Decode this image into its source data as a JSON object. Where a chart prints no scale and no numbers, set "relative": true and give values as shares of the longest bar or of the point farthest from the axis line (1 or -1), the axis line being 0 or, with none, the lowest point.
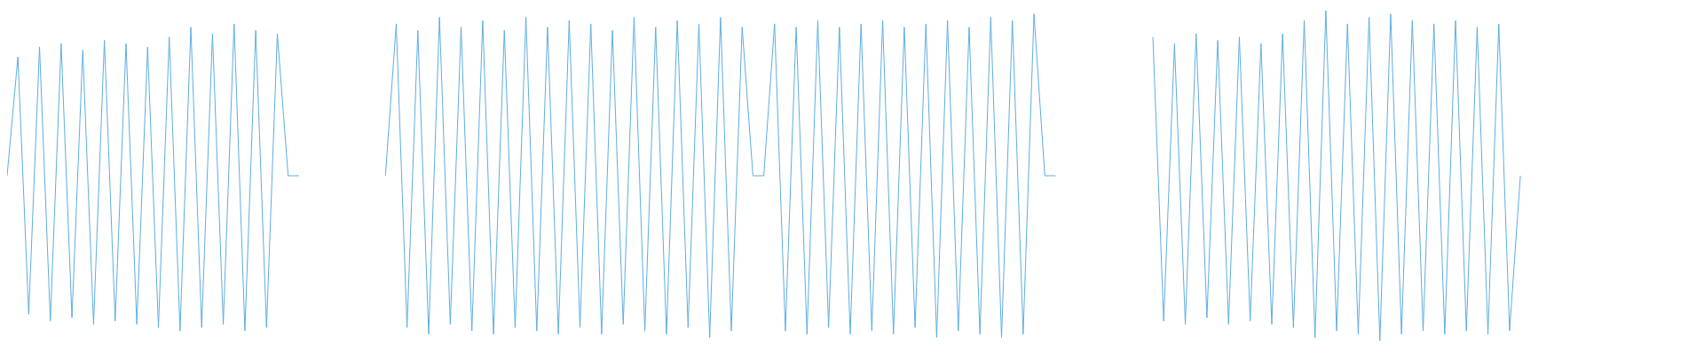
{
  "chart_data": {
    "type": "line",
    "relative": true,
    "grid": false,
    "legend": false,
    "marker": "none",
    "categories": [
      null,
      null,
      null,
      null,
      null,
      null,
      null,
      null,
      null,
      null,
      null,
      null,
      null,
      null,
      null,
      null,
      null,
      null,
      null,
      null,
      null,
      null,
      null,
      null,
      null,
      null,
      null,
      null,
      null,
      null,
      null,
      null,
      null,
      null,
      null,
      null,
      null,
      null,
      null,
      null,
      null,
      null,
      null,
      null,
      null,
      null,
      null,
      null,
      null,
      null,
      null,
      null,
      null,
      null,
      null,
      null,
      null,
      null,
      null,
      null,
      null,
      null,
      null,
      null,
      null,
      null,
      null,
      null,
      null,
      null,
      null,
      null,
      null,
      null,
      null,
      null,
      null,
      null,
      null,
      null,
      null,
      null,
      null,
      null,
      null,
      null,
      null,
      null,
      null,
      null,
      null,
      null,
      null,
      null,
      null,
      null,
      null,
      null,
      null,
      null,
      null,
      null,
      null,
      null,
      null,
      null,
      null,
      null,
      null,
      null,
      null,
      null,
      null,
      null,
      null,
      null,
      null,
      null,
      null,
      null,
      null,
      null,
      null,
      null,
      null,
      null,
      null,
      null,
      null,
      null,
      null,
      null,
      null,
      null,
      null,
      null,
      null,
      null,
      null,
      null,
      null,
      null,
      null,
      null,
      null,
      null,
      null,
      null,
      null,
      null,
      null,
      null,
      null,
      null,
      null,
      null,
      null
    ],
    "series": [
      {
        "color": "#5dade2",
        "values": [
          0.5,
          0.86,
          0.08,
          0.89,
          0.06,
          0.9,
          0.07,
          0.88,
          0.05,
          0.91,
          0.06,
          0.9,
          0.05,
          0.89,
          0.04,
          0.92,
          0.03,
          0.95,
          0.04,
          0.93,
          0.05,
          0.96,
          0.03,
          0.94,
          0.04,
          0.93,
          0.5,
          0.5,
          null,
          null,
          null,
          null,
          null,
          null,
          null,
          null,
          null,
          null,
          null,
          null,
          null,
          null,
          null,
          null,
          null,
          null,
          null,
          null,
          null,
          null,
          null,
          null,
          null,
          null,
          null,
          null,
          null,
          null,
          null,
          null,
          null,
          null,
          null,
          null,
          null,
          null,
          null,
          null,
          null,
          null,
          null,
          null,
          null,
          null,
          null,
          null,
          null,
          null,
          null,
          null,
          null,
          null,
          null,
          null,
          null,
          null,
          null,
          null,
          null,
          null,
          null,
          null,
          null,
          null,
          null,
          null,
          null,
          null,
          null,
          null,
          null,
          null,
          null,
          null,
          null,
          null,
          null,
          null,
          null,
          null,
          null,
          null,
          null,
          null,
          null,
          null,
          null,
          null,
          null,
          null,
          null,
          null,
          null,
          null,
          null,
          null,
          null,
          null,
          null,
          null,
          null,
          null,
          null,
          null,
          null,
          null,
          null,
          null,
          null,
          null,
          null,
          null,
          null,
          null,
          null,
          null,
          null,
          null,
          null,
          null,
          null,
          null,
          null,
          null,
          null,
          null,
          null
        ]
      },
      {
        "color": "#5dade2",
        "values": [
          null,
          null,
          null,
          null,
          null,
          null,
          null,
          null,
          null,
          null,
          null,
          null,
          null,
          null,
          null,
          null,
          null,
          null,
          null,
          null,
          null,
          null,
          null,
          null,
          null,
          null,
          null,
          null,
          null,
          null,
          null,
          null,
          null,
          null,
          null,
          0.5,
          0.96,
          0.04,
          0.94,
          0.02,
          0.98,
          0.05,
          0.95,
          0.03,
          0.97,
          0.02,
          0.94,
          0.04,
          0.98,
          0.03,
          0.95,
          0.02,
          0.97,
          0.04,
          0.96,
          0.02,
          0.94,
          0.05,
          0.98,
          0.03,
          0.95,
          0.02,
          0.97,
          0.04,
          0.96,
          0.01,
          0.98,
          0.03,
          0.95,
          0.5,
          0.5,
          0.96,
          0.03,
          0.95,
          0.02,
          0.97,
          0.04,
          0.95,
          0.02,
          0.96,
          0.03,
          0.97,
          0.02,
          0.95,
          0.04,
          0.96,
          0.01,
          0.97,
          0.03,
          0.95,
          0.02,
          0.98,
          0.01,
          0.97,
          0.02,
          0.99,
          0.5,
          0.5,
          null,
          null,
          null,
          null,
          null,
          null,
          null,
          null,
          null,
          null,
          null,
          null,
          null,
          null,
          null,
          null,
          null,
          null,
          null,
          null,
          null,
          null,
          null,
          null,
          null,
          null,
          null,
          null,
          null,
          null,
          null,
          null,
          null,
          null,
          null,
          null,
          null,
          null,
          null,
          null,
          null,
          null,
          null,
          null,
          null,
          null,
          null,
          null,
          null,
          null,
          null,
          null,
          null,
          null,
          null,
          null,
          null,
          null,
          null
        ]
      },
      {
        "color": "#5dade2",
        "values": [
          null,
          null,
          null,
          null,
          null,
          null,
          null,
          null,
          null,
          null,
          null,
          null,
          null,
          null,
          null,
          null,
          null,
          null,
          null,
          null,
          null,
          null,
          null,
          null,
          null,
          null,
          null,
          null,
          null,
          null,
          null,
          null,
          null,
          null,
          null,
          null,
          null,
          null,
          null,
          null,
          null,
          null,
          null,
          null,
          null,
          null,
          null,
          null,
          null,
          null,
          null,
          null,
          null,
          null,
          null,
          null,
          null,
          null,
          null,
          null,
          null,
          null,
          null,
          null,
          null,
          null,
          null,
          null,
          null,
          null,
          null,
          null,
          null,
          null,
          null,
          null,
          null,
          null,
          null,
          null,
          null,
          null,
          null,
          null,
          null,
          null,
          null,
          null,
          null,
          null,
          null,
          null,
          null,
          null,
          null,
          null,
          null,
          null,
          null,
          null,
          null,
          null,
          null,
          null,
          null,
          null,
          0.92,
          0.06,
          0.9,
          0.05,
          0.93,
          0.07,
          0.91,
          0.05,
          0.92,
          0.06,
          0.9,
          0.05,
          0.93,
          0.04,
          0.97,
          0.01,
          1,
          0.03,
          0.96,
          0.02,
          0.98,
          0,
          0.99,
          0.02,
          0.97,
          0.03,
          0.96,
          0.02,
          0.97,
          0.03,
          0.95,
          0.02,
          0.96,
          0.03,
          0.5,
          null,
          null,
          null,
          null,
          null,
          null,
          null,
          null,
          null,
          null,
          null,
          null,
          null,
          null,
          null,
          null
        ]
      }
    ]
  }
}
